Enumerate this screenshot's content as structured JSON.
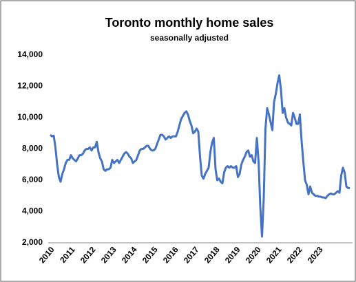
{
  "chart_data": {
    "type": "line",
    "title": "Toronto monthly home sales",
    "subtitle": "seasonally adjusted",
    "categories": [
      "2010",
      null,
      null,
      null,
      null,
      null,
      null,
      null,
      null,
      null,
      null,
      null,
      "2011",
      null,
      null,
      null,
      null,
      null,
      null,
      null,
      null,
      null,
      null,
      null,
      "2012",
      null,
      null,
      null,
      null,
      null,
      null,
      null,
      null,
      null,
      null,
      null,
      "2013",
      null,
      null,
      null,
      null,
      null,
      null,
      null,
      null,
      null,
      null,
      null,
      "2014",
      null,
      null,
      null,
      null,
      null,
      null,
      null,
      null,
      null,
      null,
      null,
      "2015",
      null,
      null,
      null,
      null,
      null,
      null,
      null,
      null,
      null,
      null,
      null,
      "2016",
      null,
      null,
      null,
      null,
      null,
      null,
      null,
      null,
      null,
      null,
      null,
      "2017",
      null,
      null,
      null,
      null,
      null,
      null,
      null,
      null,
      null,
      null,
      null,
      "2018",
      null,
      null,
      null,
      null,
      null,
      null,
      null,
      null,
      null,
      null,
      null,
      "2019",
      null,
      null,
      null,
      null,
      null,
      null,
      null,
      null,
      null,
      null,
      null,
      "2020",
      null,
      null,
      null,
      null,
      null,
      null,
      null,
      null,
      null,
      null,
      null,
      "2021",
      null,
      null,
      null,
      null,
      null,
      null,
      null,
      null,
      null,
      null,
      null,
      "2022",
      null,
      null,
      null,
      null,
      null,
      null,
      null,
      null,
      null,
      null,
      null,
      "2023",
      null,
      null,
      null,
      null,
      null,
      null,
      null,
      null,
      null,
      null,
      null,
      null,
      null,
      null,
      null,
      null,
      null,
      null
    ],
    "values": [
      8900,
      8800,
      8850,
      8100,
      7000,
      6200,
      5900,
      6400,
      6700,
      7100,
      7300,
      7300,
      7600,
      7400,
      7300,
      7200,
      7400,
      7600,
      7600,
      7700,
      7900,
      8000,
      8000,
      8100,
      7900,
      8100,
      8100,
      8450,
      7800,
      7400,
      7200,
      6700,
      6600,
      6700,
      6700,
      6800,
      7300,
      7100,
      7200,
      7300,
      7100,
      7300,
      7500,
      7700,
      7800,
      7700,
      7500,
      7400,
      7100,
      7200,
      7300,
      7600,
      7900,
      8000,
      8000,
      8100,
      8200,
      8200,
      8000,
      7900,
      7900,
      8000,
      8300,
      8600,
      8900,
      8900,
      8800,
      8600,
      8700,
      8800,
      8700,
      8800,
      8800,
      8800,
      9100,
      9500,
      9900,
      10100,
      10300,
      10400,
      10200,
      9800,
      9500,
      9000,
      9100,
      9300,
      9100,
      7500,
      6300,
      6100,
      6400,
      6600,
      6800,
      7800,
      8400,
      8700,
      6700,
      6000,
      6100,
      5900,
      5800,
      6500,
      6800,
      6900,
      6800,
      6900,
      6800,
      6800,
      6900,
      6200,
      6400,
      7000,
      7300,
      7500,
      7800,
      7900,
      7500,
      7600,
      7200,
      7100,
      8700,
      7200,
      4300,
      2400,
      4800,
      9300,
      10600,
      10200,
      9700,
      9200,
      11000,
      11500,
      12200,
      12700,
      11800,
      10300,
      10600,
      10000,
      9700,
      9600,
      9500,
      10300,
      10000,
      9600,
      9600,
      10200,
      8500,
      7200,
      6000,
      5700,
      5100,
      5600,
      5200,
      5100,
      5000,
      5000,
      4950,
      4950,
      4900,
      4900,
      4850,
      5000,
      5100,
      5150,
      5100,
      5100,
      5200,
      5300,
      5200,
      6300,
      6800,
      6500,
      5600,
      5500,
      5500
    ],
    "color": "#4472c4",
    "ylim": [
      2000,
      14000
    ],
    "yticks": [
      {
        "value": 2000,
        "label": "2,000"
      },
      {
        "value": 4000,
        "label": "4,000"
      },
      {
        "value": 6000,
        "label": "6,000"
      },
      {
        "value": 8000,
        "label": "8,000"
      },
      {
        "value": 10000,
        "label": "10,000"
      },
      {
        "value": 12000,
        "label": "12,000"
      },
      {
        "value": 14000,
        "label": "14,000"
      }
    ],
    "grid": false
  }
}
